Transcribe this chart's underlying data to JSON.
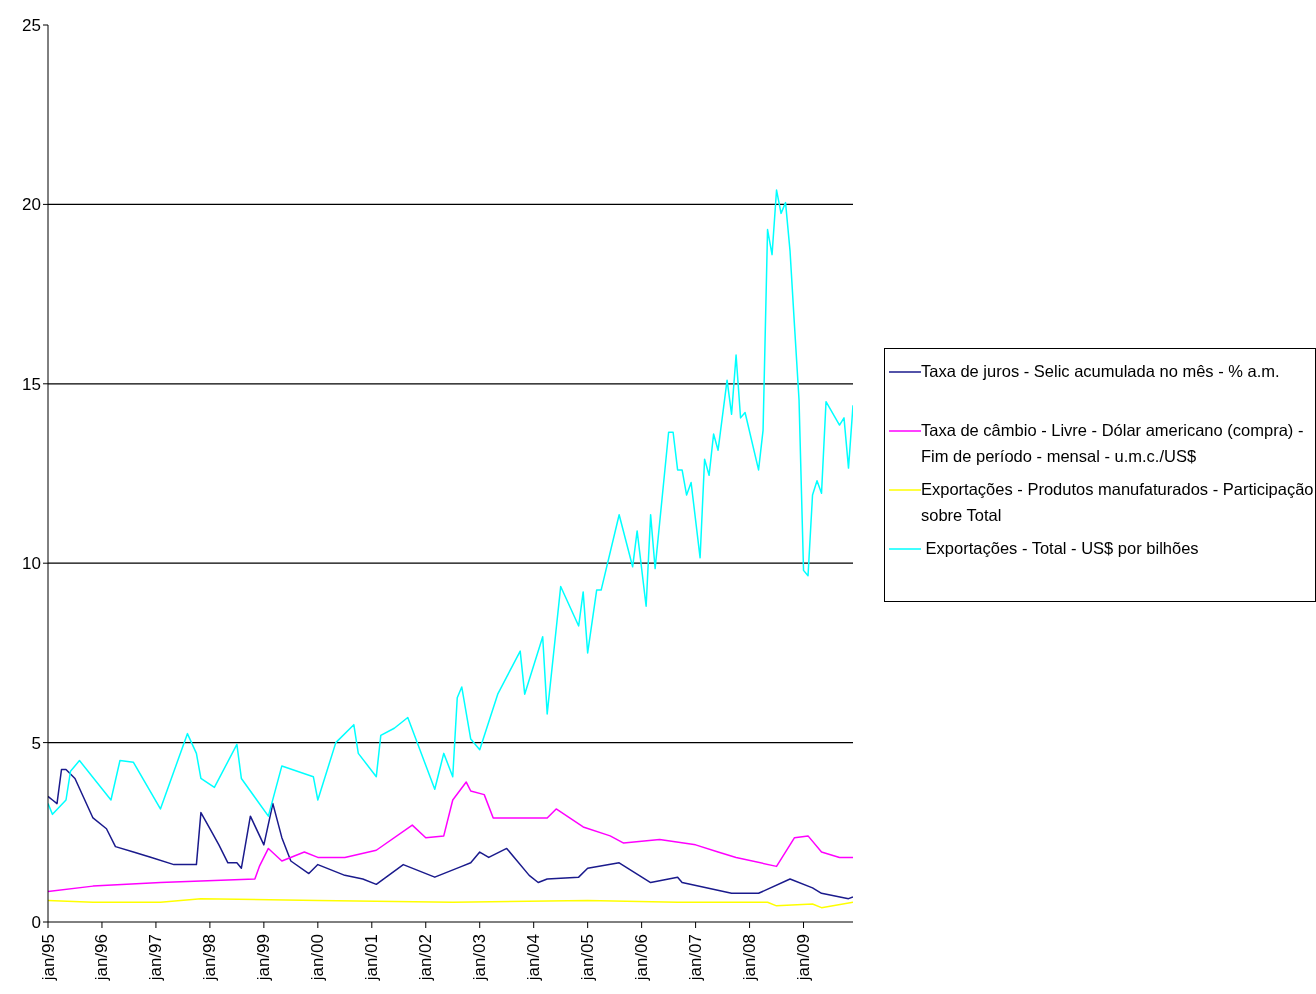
{
  "chart_data": {
    "type": "line",
    "xlim": [
      "1995-01",
      "2009-12"
    ],
    "xticks": [
      {
        "value": "1995-01",
        "label": "jan/95"
      },
      {
        "value": "1996-01",
        "label": "jan/96"
      },
      {
        "value": "1997-01",
        "label": "jan/97"
      },
      {
        "value": "1998-01",
        "label": "jan/98"
      },
      {
        "value": "1999-01",
        "label": "jan/99"
      },
      {
        "value": "2000-01",
        "label": "jan/00"
      },
      {
        "value": "2001-01",
        "label": "jan/01"
      },
      {
        "value": "2002-01",
        "label": "jan/02"
      },
      {
        "value": "2003-01",
        "label": "jan/03"
      },
      {
        "value": "2004-01",
        "label": "jan/04"
      },
      {
        "value": "2005-01",
        "label": "jan/05"
      },
      {
        "value": "2006-01",
        "label": "jan/06"
      },
      {
        "value": "2007-01",
        "label": "jan/07"
      },
      {
        "value": "2008-01",
        "label": "jan/08"
      },
      {
        "value": "2009-01",
        "label": "jan/09"
      }
    ],
    "ylim": [
      0,
      25
    ],
    "yticks": [
      0,
      5,
      10,
      15,
      20,
      25
    ],
    "grid": "y",
    "legend": "right",
    "marker": "none",
    "series": [
      {
        "name": "Taxa de juros - Selic acumulada no mês - % a.m.",
        "color": "#1a1a8c",
        "x": [
          "1995-01",
          "1995-02",
          "1995-03",
          "1995-04",
          "1995-05",
          "1995-07",
          "1995-09",
          "1995-11",
          "1996-02",
          "1996-04",
          "1996-08",
          "1996-12",
          "1997-05",
          "1997-10",
          "1997-11",
          "1998-01",
          "1998-03",
          "1998-05",
          "1998-07",
          "1998-08",
          "1998-10",
          "1999-01",
          "1999-03",
          "1999-05",
          "1999-07",
          "1999-11",
          "2000-01",
          "2000-07",
          "2000-11",
          "2001-02",
          "2001-08",
          "2002-03",
          "2002-09",
          "2002-11",
          "2003-01",
          "2003-03",
          "2003-07",
          "2003-12",
          "2004-02",
          "2004-04",
          "2004-11",
          "2005-01",
          "2005-08",
          "2006-03",
          "2006-09",
          "2006-10",
          "2007-09",
          "2008-03",
          "2008-10",
          "2009-03",
          "2009-05",
          "2009-11",
          "2009-12"
        ],
        "values": [
          3.5,
          3.4,
          3.3,
          4.25,
          4.25,
          4.0,
          3.45,
          2.9,
          2.6,
          2.1,
          1.95,
          1.8,
          1.6,
          1.6,
          3.05,
          2.6,
          2.15,
          1.65,
          1.65,
          1.5,
          2.95,
          2.15,
          3.3,
          2.35,
          1.7,
          1.35,
          1.6,
          1.3,
          1.2,
          1.05,
          1.6,
          1.25,
          1.55,
          1.65,
          1.95,
          1.8,
          2.05,
          1.3,
          1.1,
          1.2,
          1.25,
          1.5,
          1.65,
          1.1,
          1.25,
          1.1,
          0.8,
          0.8,
          1.2,
          0.95,
          0.8,
          0.65,
          0.7
        ]
      },
      {
        "name": "Taxa de câmbio - Livre - Dólar americano (compra) - Fim de período - mensal - u.m.c./US$",
        "color": "#ff00ff",
        "x": [
          "1995-01",
          "1995-11",
          "1997-02",
          "1998-11",
          "1998-12",
          "1999-02",
          "1999-05",
          "1999-10",
          "2000-01",
          "2000-07",
          "2001-02",
          "2001-10",
          "2002-01",
          "2002-05",
          "2002-07",
          "2002-10",
          "2002-11",
          "2003-02",
          "2003-04",
          "2004-04",
          "2004-06",
          "2004-12",
          "2005-06",
          "2005-09",
          "2006-05",
          "2007-01",
          "2007-06",
          "2007-10",
          "2008-07",
          "2008-11",
          "2009-02",
          "2009-05",
          "2009-09",
          "2009-12"
        ],
        "values": [
          0.85,
          1.0,
          1.1,
          1.2,
          1.55,
          2.05,
          1.7,
          1.95,
          1.8,
          1.8,
          2.0,
          2.7,
          2.35,
          2.4,
          3.4,
          3.9,
          3.65,
          3.55,
          2.9,
          2.9,
          3.15,
          2.65,
          2.4,
          2.2,
          2.3,
          2.15,
          1.95,
          1.8,
          1.55,
          2.35,
          2.4,
          1.95,
          1.8,
          1.8
        ]
      },
      {
        "name": "Exportações - Produtos manufaturados - Participação sobre Total",
        "color": "#ffff00",
        "x": [
          "1995-01",
          "1995-11",
          "1997-02",
          "1997-11",
          "2000-01",
          "2002-07",
          "2005-01",
          "2006-09",
          "2008-05",
          "2008-07",
          "2009-03",
          "2009-05",
          "2009-12"
        ],
        "values": [
          0.6,
          0.55,
          0.55,
          0.65,
          0.6,
          0.55,
          0.6,
          0.55,
          0.55,
          0.45,
          0.5,
          0.4,
          0.55
        ]
      },
      {
        "name": " Exportações - Total - US$ por bilhões",
        "color": "#00ffff",
        "x": [
          "1995-01",
          "1995-02",
          "1995-05",
          "1995-06",
          "1995-08",
          "1996-03",
          "1996-05",
          "1996-08",
          "1997-02",
          "1997-08",
          "1997-10",
          "1997-11",
          "1998-02",
          "1998-07",
          "1998-08",
          "1999-02",
          "1999-05",
          "1999-12",
          "2000-01",
          "2000-05",
          "2000-09",
          "2000-10",
          "2001-02",
          "2001-03",
          "2001-06",
          "2001-09",
          "2002-03",
          "2002-05",
          "2002-07",
          "2002-08",
          "2002-09",
          "2002-11",
          "2003-01",
          "2003-05",
          "2003-10",
          "2003-11",
          "2004-03",
          "2004-04",
          "2004-07",
          "2004-11",
          "2004-12",
          "2005-01",
          "2005-03",
          "2005-04",
          "2005-08",
          "2005-11",
          "2005-12",
          "2006-02",
          "2006-03",
          "2006-04",
          "2006-07",
          "2006-08",
          "2006-09",
          "2006-10",
          "2006-11",
          "2006-12",
          "2007-02",
          "2007-03",
          "2007-04",
          "2007-05",
          "2007-06",
          "2007-08",
          "2007-09",
          "2007-10",
          "2007-11",
          "2007-12",
          "2008-03",
          "2008-04",
          "2008-05",
          "2008-06",
          "2008-07",
          "2008-08",
          "2008-09",
          "2008-10",
          "2008-11",
          "2008-12",
          "2009-01",
          "2009-02",
          "2009-03",
          "2009-04",
          "2009-05",
          "2009-06",
          "2009-09",
          "2009-10",
          "2009-11",
          "2009-12"
        ],
        "values": [
          3.3,
          3.0,
          3.4,
          4.2,
          4.5,
          3.4,
          4.5,
          4.45,
          3.15,
          5.25,
          4.7,
          4.0,
          3.75,
          4.95,
          4.0,
          2.95,
          4.35,
          4.05,
          3.4,
          5.0,
          5.5,
          4.7,
          4.05,
          5.2,
          5.4,
          5.7,
          3.7,
          4.7,
          4.05,
          6.25,
          6.55,
          5.1,
          4.8,
          6.35,
          7.55,
          6.35,
          7.95,
          5.8,
          9.35,
          8.25,
          9.2,
          7.5,
          9.25,
          9.25,
          11.35,
          9.9,
          10.9,
          8.8,
          11.35,
          9.85,
          13.65,
          13.65,
          12.6,
          12.6,
          11.9,
          12.25,
          10.15,
          12.9,
          12.45,
          13.6,
          13.15,
          15.1,
          14.15,
          15.8,
          14.05,
          14.2,
          12.6,
          13.7,
          19.3,
          18.6,
          20.4,
          19.75,
          20.05,
          18.7,
          16.6,
          14.55,
          9.8,
          9.65,
          11.9,
          12.3,
          11.95,
          14.5,
          13.85,
          14.05,
          12.65,
          14.4
        ]
      }
    ]
  }
}
